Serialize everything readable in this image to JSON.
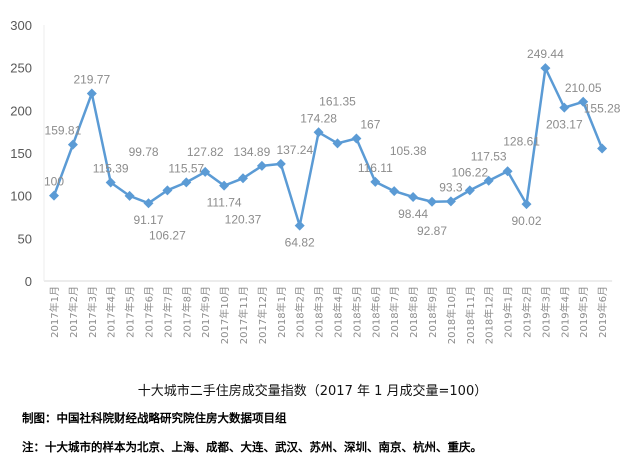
{
  "chart_data": {
    "type": "line",
    "title": "十大城市二手住房成交量指数（2017 年 1 月成交量=100）",
    "xlabel": "",
    "ylabel": "",
    "ylim": [
      0,
      300
    ],
    "yticks": [
      0,
      50,
      100,
      150,
      200,
      250,
      300
    ],
    "grid": false,
    "legend": "none",
    "color": "#5b9bd5",
    "categories": [
      "2017年1月",
      "2017年2月",
      "2017年3月",
      "2017年4月",
      "2017年5月",
      "2017年6月",
      "2017年7月",
      "2017年8月",
      "2017年9月",
      "2017年10月",
      "2017年11月",
      "2017年12月",
      "2018年1月",
      "2018年2月",
      "2018年3月",
      "2018年4月",
      "2018年5月",
      "2018年6月",
      "2018年7月",
      "2018年8月",
      "2018年9月",
      "2018年10月",
      "2018年11月",
      "2018年12月",
      "2019年1月",
      "2019年2月",
      "2019年3月",
      "2019年4月",
      "2019年5月",
      "2019年6月"
    ],
    "values": [
      100,
      159.81,
      219.77,
      115.39,
      99.78,
      91.17,
      106.27,
      115.57,
      127.82,
      111.74,
      120.37,
      134.89,
      137.24,
      64.82,
      174.28,
      161.35,
      167,
      116.11,
      105.38,
      98.44,
      92.87,
      93.3,
      106.22,
      117.53,
      128.61,
      90.02,
      249.44,
      203.17,
      210.05,
      155.28
    ],
    "data_labels": [
      "100",
      "159.81",
      "219.77",
      "115.39",
      "99.78",
      "91.17",
      "106.27",
      "115.57",
      "127.82",
      "111.74",
      "120.37",
      "134.89",
      "137.24",
      "64.82",
      "174.28",
      "161.35",
      "167",
      "116.11",
      "105.38",
      "98.44",
      "92.87",
      "93.3",
      "106.22",
      "117.53",
      "128.61",
      "90.02",
      "249.44",
      "203.17",
      "210.05",
      "155.28"
    ]
  },
  "source": "制图：中国社科院财经战略研究院住房大数据项目组",
  "note": "注：十大城市的样本为北京、上海、成都、大连、武汉、苏州、深圳、南京、杭州、重庆。"
}
